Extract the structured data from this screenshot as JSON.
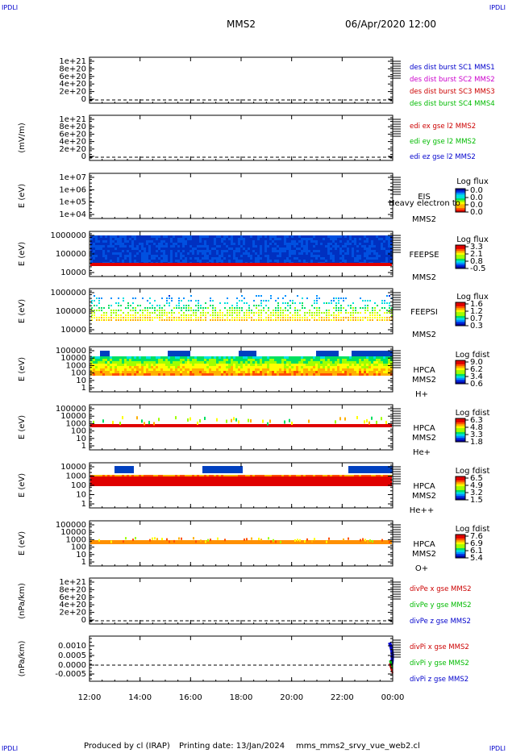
{
  "header": {
    "spacecraft": "MMS2",
    "datetime": "06/Apr/2020 12:00",
    "corner_tl": "IPDLI",
    "corner_tr": "IPDLI",
    "corner_bl": "IPDLI",
    "corner_br": "IPDLI"
  },
  "footer": {
    "produced_by": "Produced by cl (IRAP)",
    "printing_date": "Printing date: 13/Jan/2024",
    "file": "mms_mms2_srvy_vue_web2.cl"
  },
  "chart_data": {
    "type": "stacked multi-panel time series",
    "x_ticks": [
      "12:00",
      "14:00",
      "16:00",
      "18:00",
      "20:00",
      "22:00",
      "00:00"
    ],
    "panels": [
      {
        "ylabel": "",
        "yticks": [
          "1e+21",
          "8e+20",
          "6e+20",
          "4e+20",
          "2e+20",
          "0"
        ],
        "legend": [
          {
            "label": "des dist burst SC1 MMS1",
            "color": "#0000cc"
          },
          {
            "label": "des dist burst SC2 MMS2",
            "color": "#cc00cc"
          },
          {
            "label": "des dist burst SC3 MMS3",
            "color": "#cc0000"
          },
          {
            "label": "des dist burst SC4 MMS4",
            "color": "#00bb00"
          }
        ]
      },
      {
        "ylabel": "(mV/m)",
        "yticks": [
          "1e+21",
          "8e+20",
          "6e+20",
          "4e+20",
          "2e+20",
          "0"
        ],
        "legend": [
          {
            "label": "edi ex gse l2 MMS2",
            "color": "#cc0000"
          },
          {
            "label": "edi ey gse l2 MMS2",
            "color": "#00bb00"
          },
          {
            "label": "edi ez gse l2 MMS2",
            "color": "#0000cc"
          }
        ]
      },
      {
        "ylabel": "E (eV)",
        "yticks": [
          "1e+07",
          "1e+06",
          "1e+05",
          "1e+04"
        ],
        "instrument": [
          "EIS",
          "MMS2"
        ],
        "overlay": "Heavy electron to",
        "cbar_title": "Log flux",
        "cbar_ticks": [
          "0.0",
          "0.0",
          "0.0",
          "0.0"
        ],
        "cbar_empty": true
      },
      {
        "ylabel": "E (eV)",
        "yticks": [
          "1000000",
          "100000",
          "10000"
        ],
        "instrument": [
          "FEEPSE",
          "MMS2"
        ],
        "cbar_title": "Log flux",
        "cbar_ticks": [
          "3.3",
          "2.1",
          "0.8",
          "-0.5"
        ]
      },
      {
        "ylabel": "E (eV)",
        "yticks": [
          "1000000",
          "100000",
          "10000"
        ],
        "instrument": [
          "FEEPSI",
          "MMS2"
        ],
        "cbar_title": "Log flux",
        "cbar_ticks": [
          "1.6",
          "1.2",
          "0.7",
          "0.3"
        ]
      },
      {
        "ylabel": "E (eV)",
        "yticks": [
          "100000",
          "10000",
          "1000",
          "100",
          "10",
          "1"
        ],
        "instrument": [
          "HPCA",
          "MMS2"
        ],
        "species": "H+",
        "cbar_title": "Log fdist",
        "cbar_ticks": [
          "9.0",
          "6.2",
          "3.4",
          "0.6"
        ]
      },
      {
        "ylabel": "E (eV)",
        "yticks": [
          "100000",
          "10000",
          "1000",
          "100",
          "10",
          "1"
        ],
        "instrument": [
          "HPCA",
          "MMS2"
        ],
        "species": "He+",
        "cbar_title": "Log fdist",
        "cbar_ticks": [
          "6.3",
          "4.8",
          "3.3",
          "1.8"
        ]
      },
      {
        "ylabel": "E (eV)",
        "yticks": [
          "10000",
          "1000",
          "100",
          "10",
          "1"
        ],
        "instrument": [
          "HPCA",
          "MMS2"
        ],
        "species": "He++",
        "cbar_title": "Log fdist",
        "cbar_ticks": [
          "6.5",
          "4.9",
          "3.2",
          "1.5"
        ]
      },
      {
        "ylabel": "E (eV)",
        "yticks": [
          "100000",
          "10000",
          "1000",
          "100",
          "10",
          "1"
        ],
        "instrument": [
          "HPCA",
          "MMS2"
        ],
        "species": "O+",
        "cbar_title": "Log fdist",
        "cbar_ticks": [
          "7.6",
          "6.9",
          "6.1",
          "5.4"
        ]
      },
      {
        "ylabel": "(nPa/km)",
        "yticks": [
          "1e+21",
          "8e+20",
          "6e+20",
          "4e+20",
          "2e+20",
          "0"
        ],
        "legend": [
          {
            "label": "divPe x gse MMS2",
            "color": "#cc0000"
          },
          {
            "label": "divPe y gse MMS2",
            "color": "#00bb00"
          },
          {
            "label": "divPe z gse MMS2",
            "color": "#0000cc"
          }
        ]
      },
      {
        "ylabel": "(nPa/km)",
        "yticks": [
          "0.0010",
          "0.0005",
          "0.0000",
          "-0.0005"
        ],
        "legend": [
          {
            "label": "divPi x gse MMS2",
            "color": "#cc0000"
          },
          {
            "label": "divPi y gse MMS2",
            "color": "#00bb00"
          },
          {
            "label": "divPi z gse MMS2",
            "color": "#0000cc"
          }
        ]
      }
    ]
  }
}
